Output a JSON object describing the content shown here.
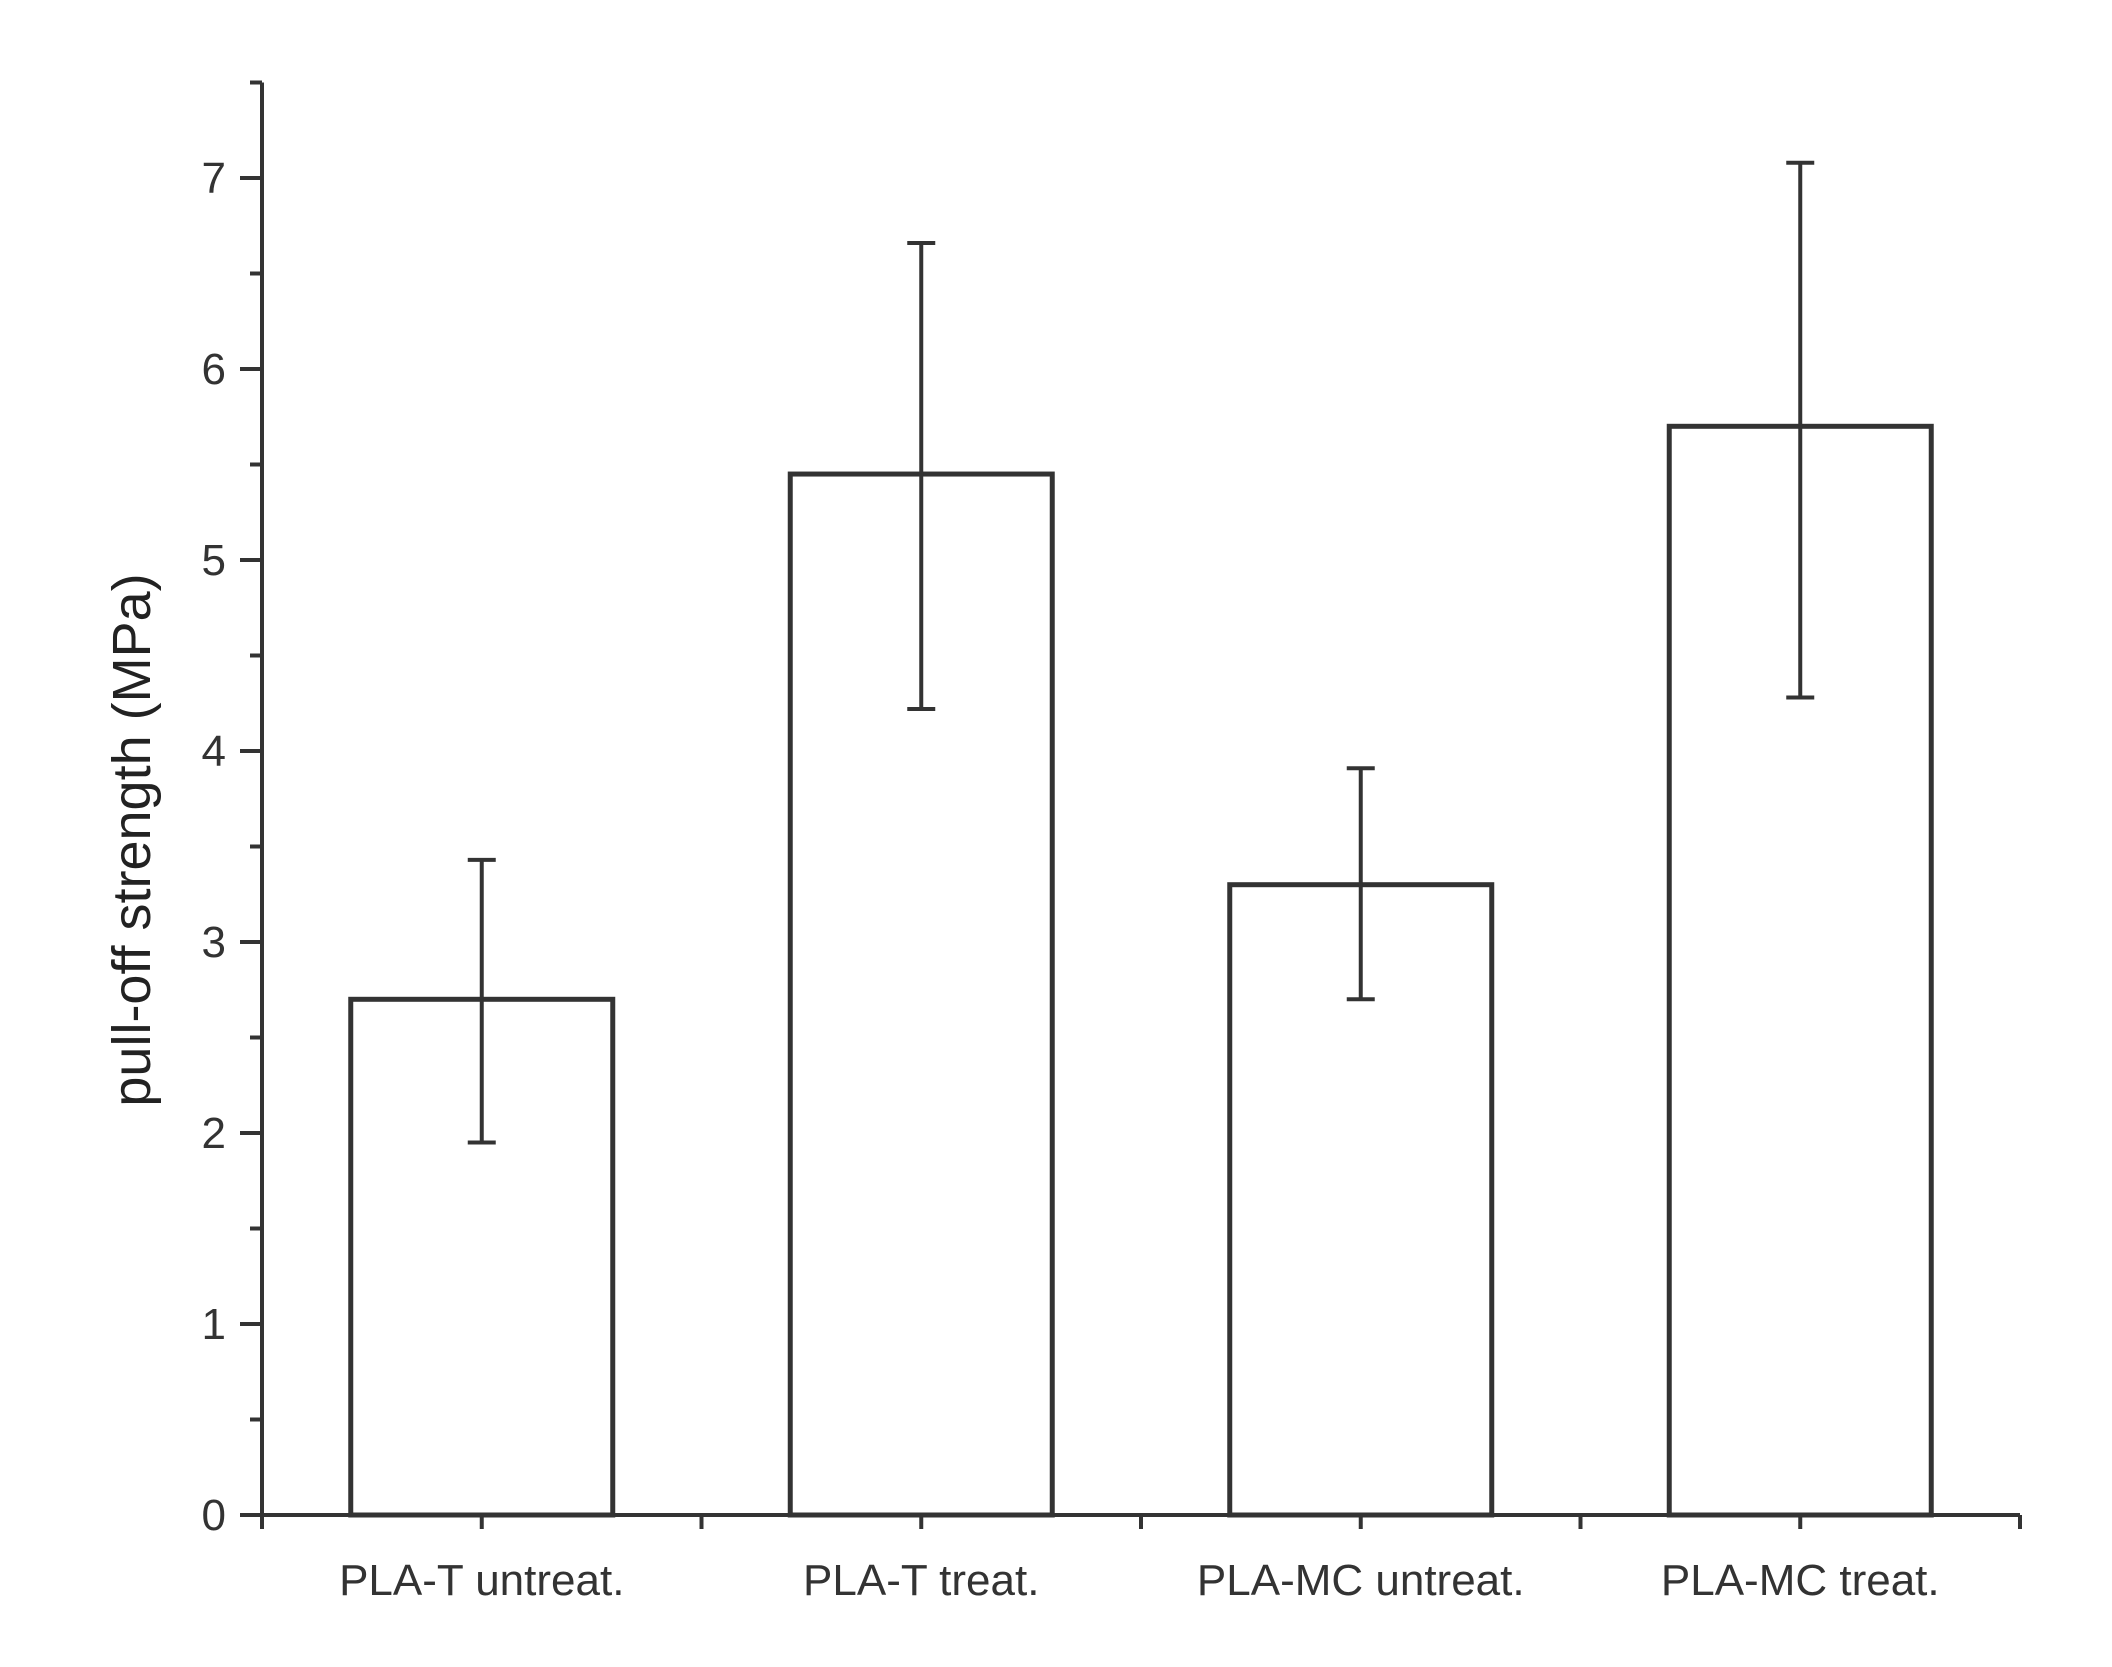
{
  "chart_data": {
    "type": "bar",
    "title": "",
    "xlabel": "",
    "ylabel": "pull-off strength (MPa)",
    "categories": [
      "PLA-T untreat.",
      "PLA-T treat.",
      "PLA-MC untreat.",
      "PLA-MC treat."
    ],
    "values": [
      2.7,
      5.45,
      3.3,
      5.7
    ],
    "error_low": [
      1.95,
      4.22,
      2.7,
      4.28
    ],
    "error_high": [
      3.43,
      6.66,
      3.91,
      7.08
    ],
    "ylim": [
      0,
      7.5
    ],
    "yticks": [
      "0",
      "1",
      "2",
      "3",
      "4",
      "5",
      "6",
      "7"
    ],
    "grid": false,
    "legend": "none",
    "colors": {
      "bar_fill": "#ffffff",
      "bar_stroke": "#333333"
    }
  }
}
